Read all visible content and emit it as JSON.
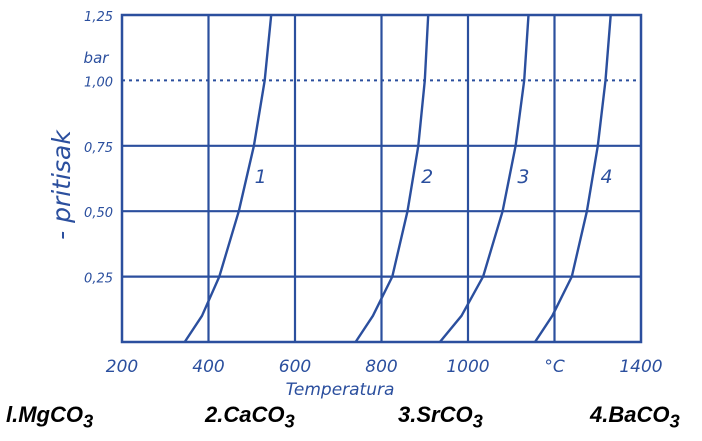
{
  "chart_data": {
    "type": "line",
    "title": "",
    "xlabel": "Temperatura",
    "ylabel": "- pritisak",
    "y_unit": "bar",
    "x_unit": "°C",
    "xlim": [
      200,
      1400
    ],
    "ylim": [
      0,
      1.25
    ],
    "x_ticks": [
      "200",
      "400",
      "600",
      "800",
      "1000",
      "°C",
      "1400"
    ],
    "y_ticks": [
      "0,25",
      "0,50",
      "0,75",
      "1,00",
      "1,25"
    ],
    "y_ticks_values": [
      0.25,
      0.5,
      0.75,
      1.0,
      1.25
    ],
    "x_ticks_values": [
      200,
      400,
      600,
      800,
      1000,
      1200,
      1400
    ],
    "grid": true,
    "series": [
      {
        "name": "1",
        "points": [
          [
            345,
            0
          ],
          [
            385,
            0.1
          ],
          [
            425,
            0.25
          ],
          [
            470,
            0.5
          ],
          [
            505,
            0.75
          ],
          [
            530,
            1.0
          ],
          [
            545,
            1.25
          ]
        ]
      },
      {
        "name": "2",
        "points": [
          [
            740,
            0
          ],
          [
            780,
            0.1
          ],
          [
            825,
            0.25
          ],
          [
            860,
            0.5
          ],
          [
            885,
            0.75
          ],
          [
            900,
            1.0
          ],
          [
            908,
            1.25
          ]
        ]
      },
      {
        "name": "3",
        "points": [
          [
            935,
            0
          ],
          [
            985,
            0.1
          ],
          [
            1035,
            0.25
          ],
          [
            1080,
            0.5
          ],
          [
            1110,
            0.75
          ],
          [
            1130,
            1.0
          ],
          [
            1140,
            1.25
          ]
        ]
      },
      {
        "name": "4",
        "points": [
          [
            1155,
            0
          ],
          [
            1195,
            0.1
          ],
          [
            1240,
            0.25
          ],
          [
            1275,
            0.5
          ],
          [
            1300,
            0.75
          ],
          [
            1318,
            1.0
          ],
          [
            1330,
            1.25
          ]
        ]
      }
    ],
    "legend": [
      "l.MgCO3",
      "2.CaCO3",
      "3.SrCO3",
      "4.BaCO3"
    ],
    "legend_placement": "bottom"
  },
  "colors": {
    "ink": "#2b4f9e",
    "legend_text": "#000000",
    "background": "#ffffff"
  }
}
